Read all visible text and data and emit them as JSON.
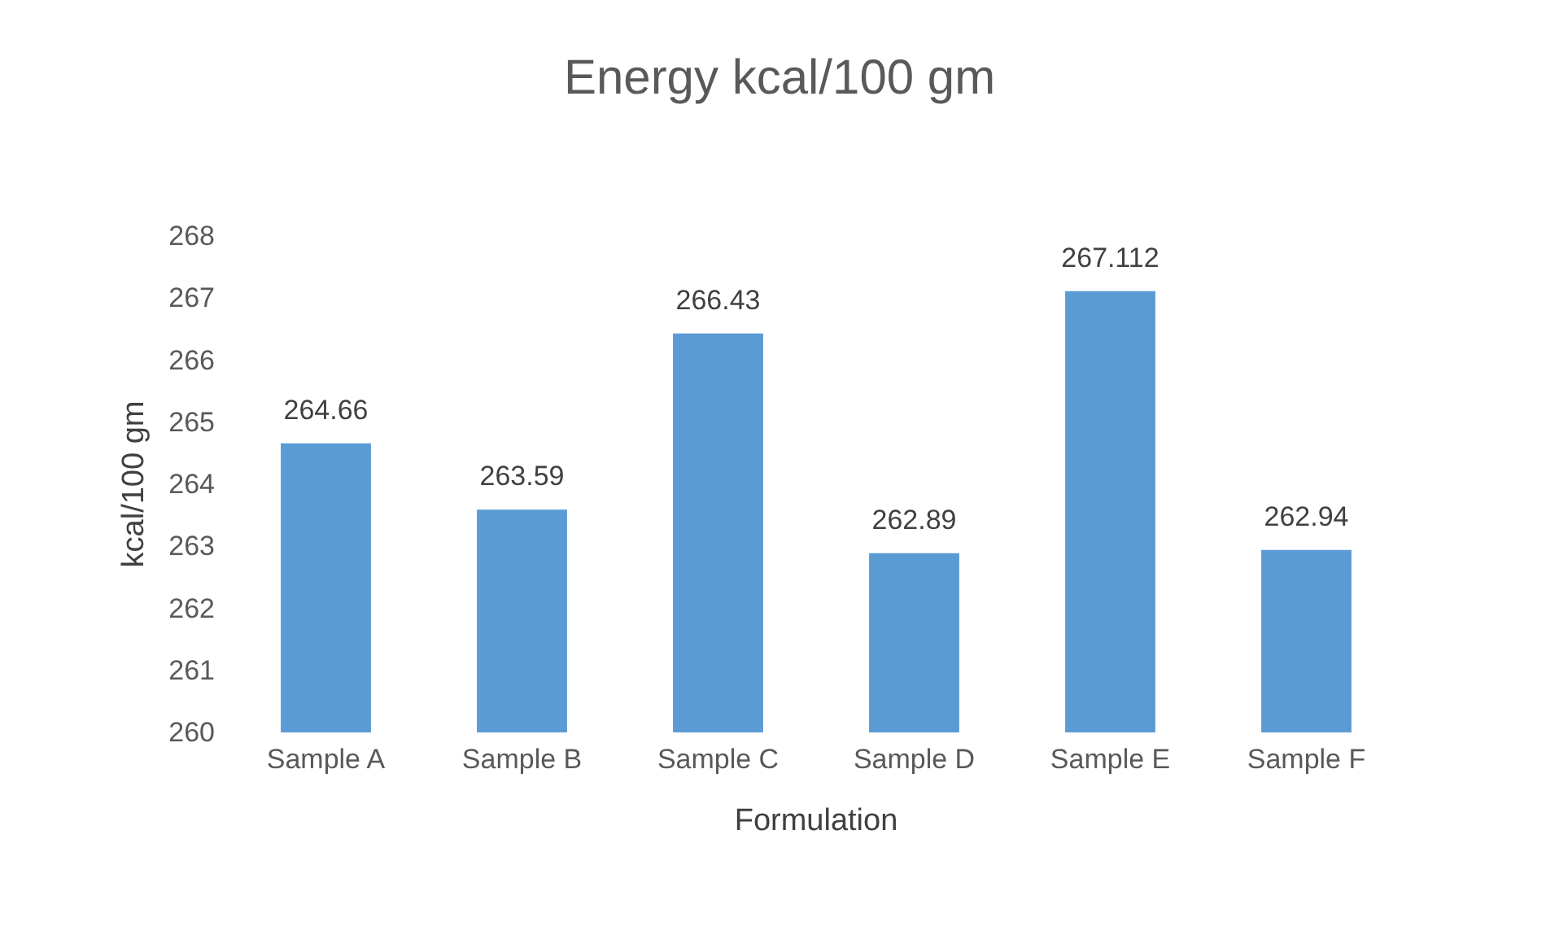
{
  "chart_data": {
    "type": "bar",
    "title": "Energy kcal/100 gm",
    "xlabel": "Formulation",
    "ylabel": "kcal/100 gm",
    "categories": [
      "Sample A",
      "Sample B",
      "Sample C",
      "Sample D",
      "Sample E",
      "Sample F"
    ],
    "values": [
      264.66,
      263.59,
      266.43,
      262.89,
      267.112,
      262.94
    ],
    "color": "#5b9bd5",
    "ylim": [
      260,
      268
    ],
    "yticks": [
      260,
      261,
      262,
      263,
      264,
      265,
      266,
      267,
      268
    ],
    "data_labels": true
  }
}
